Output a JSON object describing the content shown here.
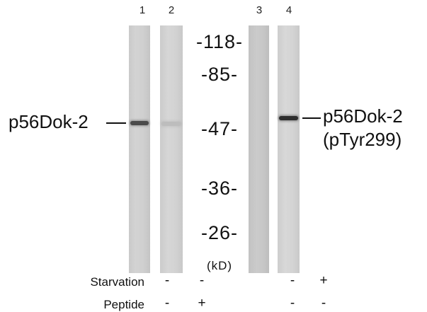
{
  "lanes": [
    {
      "number": "1",
      "starvation": "-",
      "peptide": "-"
    },
    {
      "number": "2",
      "starvation": "-",
      "peptide": "+"
    },
    {
      "number": "3",
      "starvation": "-",
      "peptide": "-"
    },
    {
      "number": "4",
      "starvation": "+",
      "peptide": "-"
    }
  ],
  "markers": [
    "-118-",
    "-85-",
    "-47-",
    "-36-",
    "-26-"
  ],
  "unit": "(kD)",
  "labels": {
    "left": "p56Dok-2",
    "right_line1": "p56Dok-2",
    "right_line2": "(pTyr299)"
  },
  "conditions": {
    "starvation": "Starvation",
    "peptide": "Peptide"
  }
}
